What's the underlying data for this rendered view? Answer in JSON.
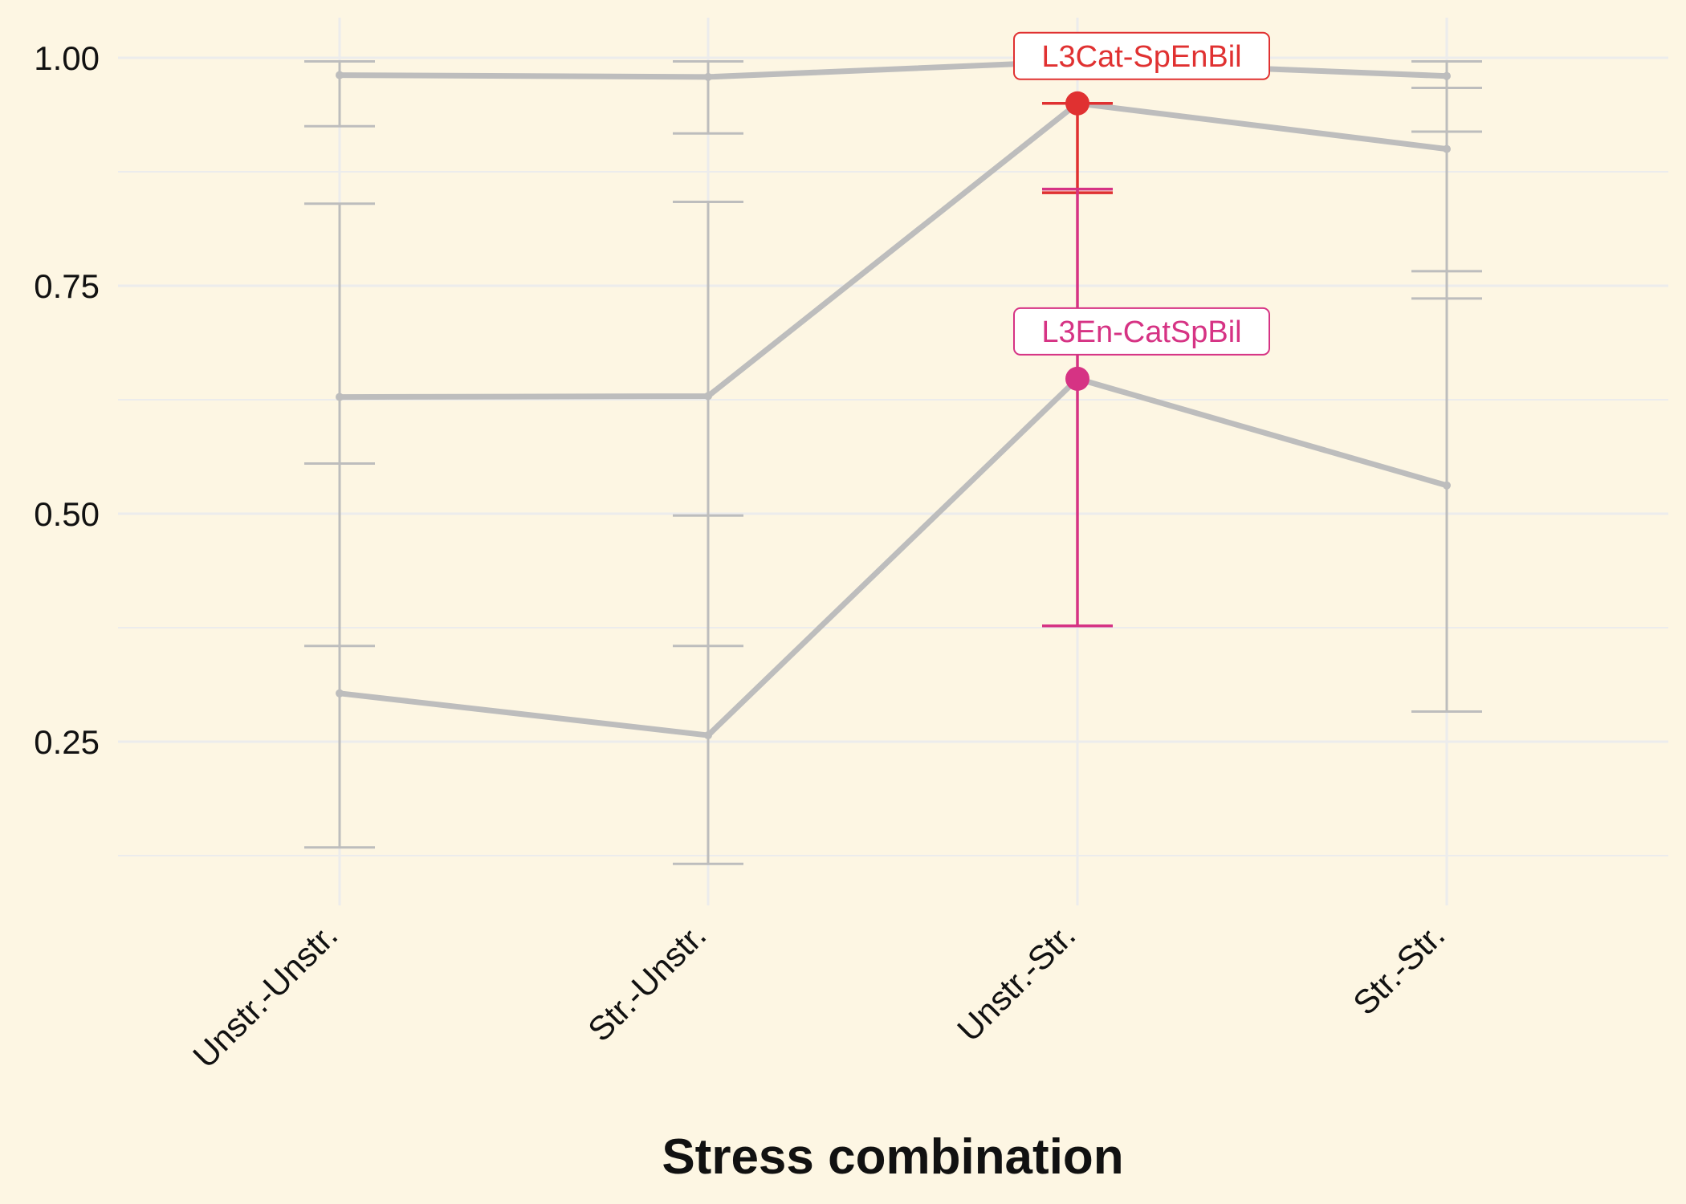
{
  "chart_data": {
    "type": "line",
    "xlabel": "Stress combination",
    "ylabel": "",
    "categories": [
      "Unstr.-Unstr.",
      "Str.-Unstr.",
      "Unstr.-Str.",
      "Str.-Str."
    ],
    "ylim": [
      0.07,
      1.04
    ],
    "yticks": [
      0.25,
      0.5,
      0.75,
      1.0
    ],
    "ytick_labels": [
      "0.25",
      "0.50",
      "0.75",
      "1.00"
    ],
    "grid": true,
    "series": [
      {
        "values": [
          0.981,
          0.979,
          0.996,
          0.98
        ],
        "err_low": [
          0.925,
          0.917,
          0.996,
          0.919
        ],
        "err_high": [
          0.996,
          0.996,
          0.996,
          0.996
        ],
        "color": "#bdbdbd"
      },
      {
        "values": [
          0.628,
          0.629,
          0.95,
          0.9
        ],
        "err_low": [
          0.355,
          0.355,
          0.852,
          0.736
        ],
        "err_high": [
          0.84,
          0.842,
          0.95,
          0.967
        ],
        "color": "#bdbdbd"
      },
      {
        "values": [
          0.303,
          0.257,
          0.648,
          0.531
        ],
        "err_low": [
          0.134,
          0.116,
          0.377,
          0.283
        ],
        "err_high": [
          0.555,
          0.498,
          0.856,
          0.766
        ],
        "color": "#bdbdbd"
      }
    ],
    "highlights": [
      {
        "label": "L3Cat-SpEnBil",
        "category_index": 2,
        "value": 0.95,
        "err_low": 0.852,
        "err_high": 0.95,
        "color": "#e03131"
      },
      {
        "label": "L3En-CatSpBil",
        "category_index": 2,
        "value": 0.648,
        "err_low": 0.377,
        "err_high": 0.856,
        "color": "#d63384"
      }
    ]
  },
  "colors": {
    "background": "#fdf6e3",
    "grid": "#ececec",
    "muted_series": "#bdbdbd",
    "highlight_red": "#e03131",
    "highlight_pink": "#d63384"
  }
}
